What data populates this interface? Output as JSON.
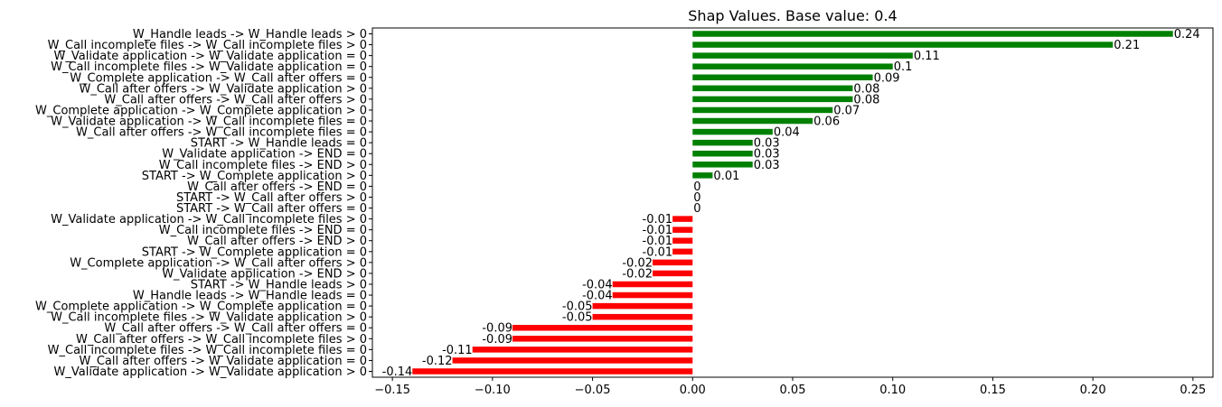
{
  "chart_data": {
    "type": "bar",
    "orientation": "horizontal",
    "title": "Shap Values. Base value: 0.4",
    "xlabel": "",
    "ylabel": "",
    "xlim": [
      -0.16,
      0.26
    ],
    "x_ticks": [
      -0.15,
      -0.1,
      -0.05,
      0.0,
      0.05,
      0.1,
      0.15,
      0.2,
      0.25
    ],
    "x_tick_labels": [
      "−0.15",
      "−0.10",
      "−0.05",
      "0.00",
      "0.05",
      "0.10",
      "0.15",
      "0.20",
      "0.25"
    ],
    "grid": false,
    "colors": {
      "positive": "#008000",
      "negative": "#ff0000",
      "zero": "#008000"
    },
    "categories": [
      "W_Handle leads -> W_Handle leads > 0",
      "W_Call incomplete files -> W_Call incomplete files > 0",
      "W_Validate application -> W_Validate application = 0",
      "W_Call incomplete files -> W_Validate application = 0",
      "W_Complete application -> W_Call after offers = 0",
      "W_Call after offers -> W_Validate application > 0",
      "W_Call after offers -> W_Call after offers > 0",
      "W_Complete application -> W_Complete application > 0",
      "W_Validate application -> W_Call incomplete files = 0",
      "W_Call after offers -> W_Call incomplete files = 0",
      "START -> W_Handle leads = 0",
      "W_Validate application -> END = 0",
      "W_Call incomplete files -> END > 0",
      "START -> W_Complete application > 0",
      "W_Call after offers -> END = 0",
      "START -> W_Call after offers > 0",
      "START -> W_Call after offers = 0",
      "W_Validate application -> W_Call incomplete files > 0",
      "W_Call incomplete files -> END = 0",
      "W_Call after offers -> END > 0",
      "START -> W_Complete application = 0",
      "W_Complete application -> W_Call after offers > 0",
      "W_Validate application -> END > 0",
      "START -> W_Handle leads > 0",
      "W_Handle leads -> W_Handle leads = 0",
      "W_Complete application -> W_Complete application = 0",
      "W_Call incomplete files -> W_Validate application > 0",
      "W_Call after offers -> W_Call after offers = 0",
      "W_Call after offers -> W_Call incomplete files > 0",
      "W_Call incomplete files -> W_Call incomplete files = 0",
      "W_Call after offers -> W_Validate application = 0",
      "W_Validate application -> W_Validate application > 0"
    ],
    "values": [
      0.24,
      0.21,
      0.11,
      0.1,
      0.09,
      0.08,
      0.08,
      0.07,
      0.06,
      0.04,
      0.03,
      0.03,
      0.03,
      0.01,
      0,
      0,
      0,
      -0.01,
      -0.01,
      -0.01,
      -0.01,
      -0.02,
      -0.02,
      -0.04,
      -0.04,
      -0.05,
      -0.05,
      -0.09,
      -0.09,
      -0.11,
      -0.12,
      -0.14
    ],
    "value_labels": [
      "0.24",
      "0.21",
      "0.11",
      "0.1",
      "0.09",
      "0.08",
      "0.08",
      "0.07",
      "0.06",
      "0.04",
      "0.03",
      "0.03",
      "0.03",
      "0.01",
      "0",
      "0",
      "0",
      "-0.01",
      "-0.01",
      "-0.01",
      "-0.01",
      "-0.02",
      "-0.02",
      "-0.04",
      "-0.04",
      "-0.05",
      "-0.05",
      "-0.09",
      "-0.09",
      "-0.11",
      "-0.12",
      "-0.14"
    ]
  }
}
